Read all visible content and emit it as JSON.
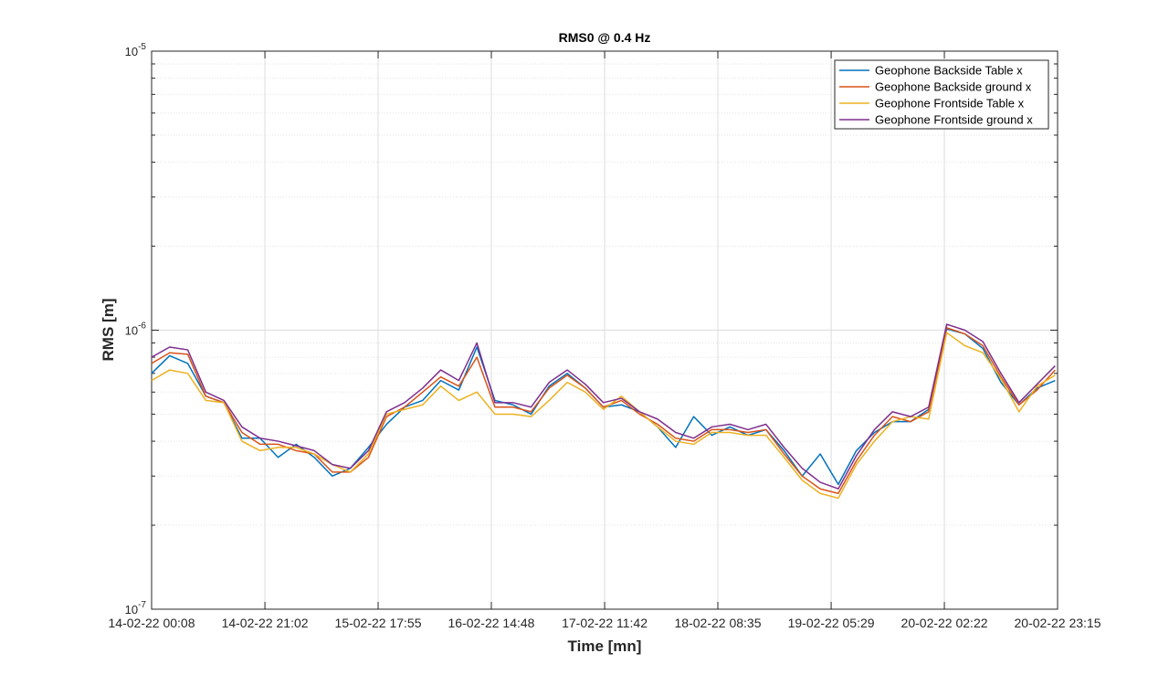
{
  "chart_data": {
    "type": "line",
    "title": "RMS0 @ 0.4 Hz",
    "x_label": "Time [mn]",
    "y_label": "RMS [m]",
    "x": [
      0,
      200,
      400,
      600,
      800,
      1000,
      1200,
      1400,
      1600,
      1800,
      2000,
      2200,
      2400,
      2600,
      2800,
      3000,
      3200,
      3400,
      3600,
      3800,
      4000,
      4200,
      4400,
      4600,
      4800,
      5000,
      5200,
      5400,
      5600,
      5800,
      6000,
      6200,
      6400,
      6600,
      6800,
      7000,
      7200,
      7400,
      7600,
      7800,
      8000,
      8200,
      8400,
      8600,
      8800,
      9000,
      9200,
      9400,
      9600,
      9800,
      10000
    ],
    "series": [
      {
        "name": "Geophone Backside Table x",
        "color": "#0072bd",
        "values": [
          7e-07,
          8.1e-07,
          7.6e-07,
          5.8e-07,
          5.5e-07,
          4.1e-07,
          4.1e-07,
          3.5e-07,
          3.9e-07,
          3.5e-07,
          3e-07,
          3.2e-07,
          3.8e-07,
          4.6e-07,
          5.3e-07,
          5.6e-07,
          6.6e-07,
          6.1e-07,
          8.7e-07,
          5.6e-07,
          5.4e-07,
          5e-07,
          6.3e-07,
          7e-07,
          6.2e-07,
          5.3e-07,
          5.4e-07,
          5.1e-07,
          4.5e-07,
          3.8e-07,
          4.9e-07,
          4.2e-07,
          4.5e-07,
          4.2e-07,
          4.4e-07,
          3.7e-07,
          3e-07,
          3.6e-07,
          2.8e-07,
          3.7e-07,
          4.3e-07,
          4.7e-07,
          4.7e-07,
          5.2e-07,
          1.01e-06,
          9.7e-07,
          8.6e-07,
          6.5e-07,
          5.4e-07,
          6.2e-07,
          6.6e-07
        ]
      },
      {
        "name": "Geophone Backside ground x",
        "color": "#d95319",
        "values": [
          7.6e-07,
          8.3e-07,
          8.2e-07,
          5.8e-07,
          5.5e-07,
          4.3e-07,
          3.9e-07,
          3.9e-07,
          3.7e-07,
          3.6e-07,
          3.1e-07,
          3.1e-07,
          3.5e-07,
          4.9e-07,
          5.3e-07,
          6e-07,
          6.8e-07,
          6.3e-07,
          8e-07,
          5.3e-07,
          5.3e-07,
          5.1e-07,
          6.2e-07,
          6.9e-07,
          6.2e-07,
          5.3e-07,
          5.6e-07,
          5e-07,
          4.6e-07,
          4.1e-07,
          4e-07,
          4.4e-07,
          4.4e-07,
          4.3e-07,
          4.4e-07,
          3.6e-07,
          3e-07,
          2.7e-07,
          2.6e-07,
          3.4e-07,
          4.2e-07,
          4.9e-07,
          4.7e-07,
          5.1e-07,
          1.02e-06,
          9.7e-07,
          8.8e-07,
          6.8e-07,
          5.4e-07,
          6.1e-07,
          7.2e-07
        ]
      },
      {
        "name": "Geophone Frontside Table x",
        "color": "#edb120",
        "values": [
          6.6e-07,
          7.2e-07,
          7e-07,
          5.6e-07,
          5.5e-07,
          4e-07,
          3.7e-07,
          3.8e-07,
          3.8e-07,
          3.6e-07,
          3.3e-07,
          3.1e-07,
          3.6e-07,
          5e-07,
          5.2e-07,
          5.4e-07,
          6.3e-07,
          5.6e-07,
          6e-07,
          5e-07,
          5e-07,
          4.9e-07,
          5.6e-07,
          6.5e-07,
          6e-07,
          5.2e-07,
          5.8e-07,
          5.1e-07,
          4.5e-07,
          4e-07,
          3.9e-07,
          4.3e-07,
          4.3e-07,
          4.2e-07,
          4.2e-07,
          3.5e-07,
          2.9e-07,
          2.6e-07,
          2.5e-07,
          3.3e-07,
          4e-07,
          4.7e-07,
          4.9e-07,
          4.8e-07,
          9.8e-07,
          8.8e-07,
          8.3e-07,
          6.7e-07,
          5.1e-07,
          6.3e-07,
          6.9e-07
        ]
      },
      {
        "name": "Geophone Frontside ground x",
        "color": "#7e2f8e",
        "values": [
          8e-07,
          8.7e-07,
          8.5e-07,
          6e-07,
          5.6e-07,
          4.5e-07,
          4.1e-07,
          4e-07,
          3.85e-07,
          3.7e-07,
          3.3e-07,
          3.2e-07,
          3.7e-07,
          5.1e-07,
          5.5e-07,
          6.2e-07,
          7.2e-07,
          6.6e-07,
          9e-07,
          5.5e-07,
          5.5e-07,
          5.3e-07,
          6.5e-07,
          7.2e-07,
          6.4e-07,
          5.5e-07,
          5.7e-07,
          5.1e-07,
          4.8e-07,
          4.3e-07,
          4.1e-07,
          4.5e-07,
          4.6e-07,
          4.4e-07,
          4.6e-07,
          3.8e-07,
          3.2e-07,
          2.85e-07,
          2.7e-07,
          3.55e-07,
          4.4e-07,
          5.1e-07,
          4.9e-07,
          5.3e-07,
          1.05e-06,
          1e-06,
          9.1e-07,
          7e-07,
          5.5e-07,
          6.4e-07,
          7.45e-07
        ]
      }
    ],
    "xlim": [
      0,
      10027
    ],
    "xticks": [
      {
        "value": 0,
        "label": "14-02-22 00:08"
      },
      {
        "value": 1254,
        "label": "14-02-22 21:02"
      },
      {
        "value": 2507,
        "label": "15-02-22 17:55"
      },
      {
        "value": 3760,
        "label": "16-02-22 14:48"
      },
      {
        "value": 5014,
        "label": "17-02-22 11:42"
      },
      {
        "value": 6267,
        "label": "18-02-22 08:35"
      },
      {
        "value": 7521,
        "label": "19-02-22 05:29"
      },
      {
        "value": 8774,
        "label": "20-02-22 02:22"
      },
      {
        "value": 10027,
        "label": "20-02-22 23:15"
      }
    ],
    "ylim": [
      1e-07,
      1e-05
    ],
    "y_scale": "log",
    "yticks": [
      {
        "value": 1e-07,
        "label": "10",
        "exponent": "-7"
      },
      {
        "value": 1e-06,
        "label": "10",
        "exponent": "-6"
      },
      {
        "value": 1e-05,
        "label": "10",
        "exponent": "-5"
      }
    ],
    "yminorticks": [
      2e-07,
      3e-07,
      4e-07,
      5e-07,
      6e-07,
      7e-07,
      8e-07,
      9e-07,
      2e-06,
      3e-06,
      4e-06,
      5e-06,
      6e-06,
      7e-06,
      8e-06,
      9e-06
    ],
    "grid": true,
    "legend": "top-right"
  }
}
